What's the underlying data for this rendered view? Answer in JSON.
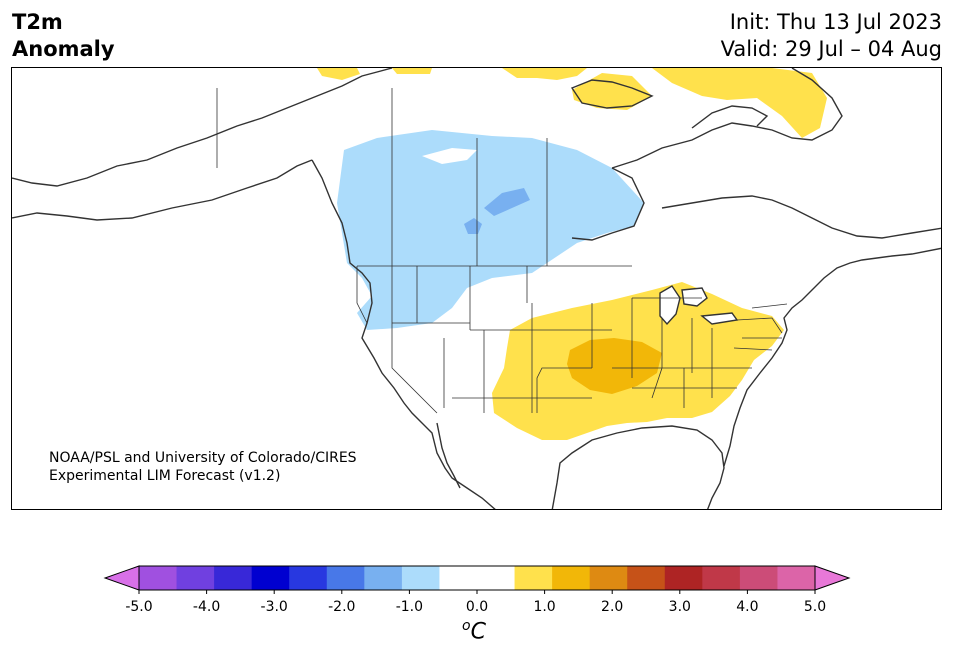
{
  "header": {
    "title_line1": "T2m",
    "title_line2": "Anomaly",
    "init": "Init: Thu 13 Jul 2023",
    "valid": "Valid: 29 Jul – 04 Aug"
  },
  "credit": {
    "line1": "NOAA/PSL and University of Colorado/CIRES",
    "line2": "Experimental LIM Forecast (v1.2)"
  },
  "colorbar": {
    "unit_base": "C",
    "unit_sup": "o",
    "ticks": [
      "-5.0",
      "-4.0",
      "-3.0",
      "-2.0",
      "-1.0",
      "0.0",
      "1.0",
      "2.0",
      "3.0",
      "4.0",
      "5.0"
    ],
    "min_color": "#d870e8",
    "max_color": "#e878d8",
    "colors": [
      "#d870e8",
      "#a050e0",
      "#7040e0",
      "#3828d8",
      "#0000d0",
      "#2838e0",
      "#4878e8",
      "#78b0f0",
      "#acdcfb",
      "#ffffff",
      "#ffffff",
      "#ffe14c",
      "#f2b708",
      "#de8a12",
      "#c65218",
      "#ae2424",
      "#c03848",
      "#cc4c78",
      "#dc64a8",
      "#e878d8"
    ]
  },
  "map": {
    "region": "North America",
    "anomaly_colors": {
      "cold_light": "#acdcfb",
      "cold_mid": "#78b0f0",
      "warm_light": "#ffe14c",
      "warm_mid": "#f2b708"
    }
  }
}
